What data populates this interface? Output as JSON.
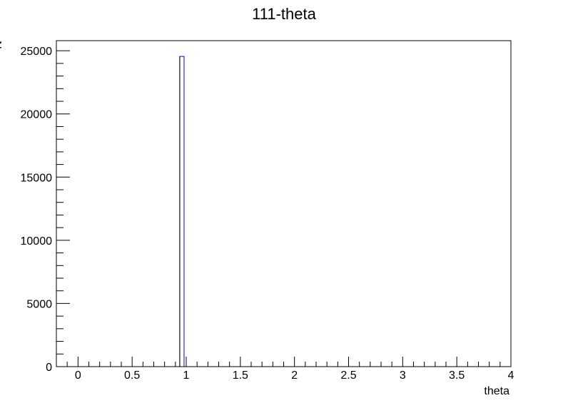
{
  "chart_data": {
    "type": "bar",
    "title": "111-theta",
    "xlabel": "theta",
    "ylabel": "N",
    "xlim": [
      -0.2,
      4.0
    ],
    "ylim": [
      0,
      25800
    ],
    "x_ticks": [
      0,
      0.5,
      1,
      1.5,
      2,
      2.5,
      3,
      3.5,
      4
    ],
    "x_tick_labels": [
      "0",
      "0.5",
      "1",
      "1.5",
      "2",
      "2.5",
      "3",
      "3.5",
      "4"
    ],
    "y_ticks": [
      0,
      5000,
      10000,
      15000,
      20000,
      25000
    ],
    "y_tick_labels": [
      "0",
      "5000",
      "10000",
      "15000",
      "20000",
      "25000"
    ],
    "bins": [
      {
        "x_low": 0.94,
        "x_high": 0.98,
        "value": 24550
      }
    ],
    "grid": false,
    "colors": {
      "line": "#0000cc",
      "frame": "#000000"
    }
  }
}
